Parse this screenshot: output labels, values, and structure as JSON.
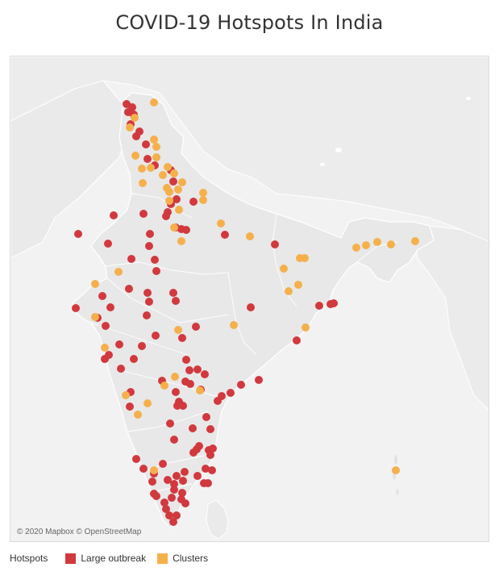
{
  "title": "COVID-19 Hotspots In India",
  "attribution": "© 2020 Mapbox © OpenStreetMap",
  "legend": {
    "title": "Hotspots",
    "items": [
      {
        "label": "Large outbreak",
        "color": "#d1393e"
      },
      {
        "label": "Clusters",
        "color": "#f5b04c"
      }
    ]
  },
  "colors": {
    "large_outbreak": "#d1393e",
    "clusters": "#f5b04c",
    "land": "#ececec",
    "sea": "#f2f2f2",
    "border": "#ffffff"
  },
  "chart_data": {
    "type": "scatter",
    "series": [
      {
        "name": "Large outbreak",
        "color": "#d1393e",
        "points": [
          [
            156,
            128
          ],
          [
            163,
            132
          ],
          [
            158,
            138
          ],
          [
            165,
            141
          ],
          [
            168,
            168
          ],
          [
            172,
            162
          ],
          [
            161,
            153
          ],
          [
            180,
            178
          ],
          [
            182,
            196
          ],
          [
            191,
            204
          ],
          [
            211,
            210
          ],
          [
            214,
            224
          ],
          [
            218,
            246
          ],
          [
            211,
            252
          ],
          [
            207,
            262
          ],
          [
            205,
            267
          ],
          [
            230,
            284
          ],
          [
            224,
            283
          ],
          [
            217,
            281
          ],
          [
            239,
            249
          ],
          [
            140,
            266
          ],
          [
            177,
            264
          ],
          [
            185,
            289
          ],
          [
            184,
            304
          ],
          [
            133,
            301
          ],
          [
            96,
            289
          ],
          [
            278,
            290
          ],
          [
            340,
            302
          ],
          [
            162,
            320
          ],
          [
            191,
            321
          ],
          [
            193,
            335
          ],
          [
            159,
            357
          ],
          [
            182,
            362
          ],
          [
            184,
            373
          ],
          [
            214,
            362
          ],
          [
            217,
            372
          ],
          [
            93,
            381
          ],
          [
            126,
            366
          ],
          [
            136,
            380
          ],
          [
            181,
            390
          ],
          [
            120,
            393
          ],
          [
            130,
            403
          ],
          [
            242,
            404
          ],
          [
            147,
            426
          ],
          [
            175,
            428
          ],
          [
            225,
            418
          ],
          [
            192,
            415
          ],
          [
            129,
            444
          ],
          [
            134,
            439
          ],
          [
            165,
            444
          ],
          [
            149,
            456
          ],
          [
            230,
            445
          ],
          [
            234,
            458
          ],
          [
            229,
            472
          ],
          [
            235,
            475
          ],
          [
            248,
            482
          ],
          [
            244,
            457
          ],
          [
            253,
            463
          ],
          [
            200,
            471
          ],
          [
            217,
            485
          ],
          [
            161,
            485
          ],
          [
            221,
            497
          ],
          [
            226,
            502
          ],
          [
            210,
            524
          ],
          [
            219,
            502
          ],
          [
            160,
            503
          ],
          [
            238,
            530
          ],
          [
            255,
            516
          ],
          [
            260,
            531
          ],
          [
            269,
            496
          ],
          [
            274,
            490
          ],
          [
            285,
            486
          ],
          [
            298,
            476
          ],
          [
            320,
            470
          ],
          [
            310,
            380
          ],
          [
            367,
            421
          ],
          [
            395,
            378
          ],
          [
            409,
            376
          ],
          [
            413,
            375
          ],
          [
            215,
            544
          ],
          [
            243,
            556
          ],
          [
            246,
            552
          ],
          [
            239,
            560
          ],
          [
            258,
            557
          ],
          [
            263,
            555
          ],
          [
            260,
            563
          ],
          [
            168,
            568
          ],
          [
            177,
            580
          ],
          [
            201,
            574
          ],
          [
            190,
            586
          ],
          [
            228,
            584
          ],
          [
            218,
            589
          ],
          [
            254,
            580
          ],
          [
            262,
            582
          ],
          [
            226,
            595
          ],
          [
            207,
            594
          ],
          [
            215,
            599
          ],
          [
            215,
            606
          ],
          [
            225,
            610
          ],
          [
            212,
            616
          ],
          [
            224,
            618
          ],
          [
            229,
            623
          ],
          [
            252,
            598
          ],
          [
            257,
            598
          ],
          [
            188,
            596
          ],
          [
            193,
            614
          ],
          [
            205,
            630
          ],
          [
            209,
            638
          ],
          [
            214,
            646
          ],
          [
            218,
            638
          ],
          [
            190,
            611
          ],
          [
            203,
            622
          ],
          [
            244,
            589
          ]
        ]
      },
      {
        "name": "Clusters",
        "color": "#f5b04c",
        "points": [
          [
            190,
            126
          ],
          [
            166,
            145
          ],
          [
            160,
            157
          ],
          [
            190,
            172
          ],
          [
            193,
            181
          ],
          [
            167,
            192
          ],
          [
            193,
            194
          ],
          [
            175,
            208
          ],
          [
            186,
            207
          ],
          [
            207,
            206
          ],
          [
            201,
            216
          ],
          [
            215,
            214
          ],
          [
            225,
            225
          ],
          [
            176,
            226
          ],
          [
            206,
            232
          ],
          [
            209,
            237
          ],
          [
            220,
            234
          ],
          [
            209,
            248
          ],
          [
            221,
            259
          ],
          [
            251,
            238
          ],
          [
            251,
            247
          ],
          [
            273,
            276
          ],
          [
            215,
            281
          ],
          [
            224,
            298
          ],
          [
            309,
            292
          ],
          [
            371,
            319
          ],
          [
            377,
            319
          ],
          [
            351,
            332
          ],
          [
            369,
            352
          ],
          [
            357,
            360
          ],
          [
            146,
            336
          ],
          [
            117,
            351
          ],
          [
            117,
            392
          ],
          [
            441,
            306
          ],
          [
            453,
            303
          ],
          [
            467,
            299
          ],
          [
            484,
            302
          ],
          [
            514,
            298
          ],
          [
            289,
            402
          ],
          [
            378,
            405
          ],
          [
            220,
            408
          ],
          [
            129,
            430
          ],
          [
            216,
            466
          ],
          [
            203,
            477
          ],
          [
            155,
            489
          ],
          [
            182,
            499
          ],
          [
            170,
            513
          ],
          [
            247,
            483
          ],
          [
            190,
            582
          ],
          [
            490,
            582
          ]
        ]
      }
    ]
  }
}
